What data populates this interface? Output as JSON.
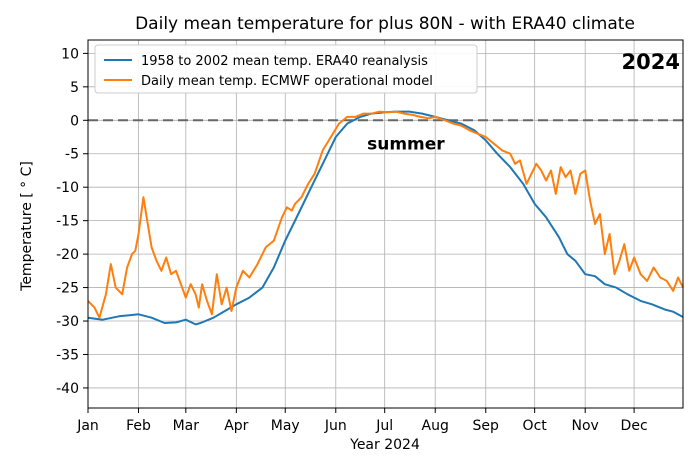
{
  "chart_data": {
    "type": "line",
    "title": "Daily mean temperature for plus 80N - with ERA40 climate",
    "xlabel": "Year 2024",
    "ylabel": "Temperature [ ° C]",
    "ylim": [
      -43,
      12
    ],
    "xlim": [
      1,
      366
    ],
    "yticks": [
      10,
      5,
      0,
      -5,
      -10,
      -15,
      -20,
      -25,
      -30,
      -35,
      -40
    ],
    "xticks": [
      {
        "label": "Jan",
        "day": 1
      },
      {
        "label": "Feb",
        "day": 32
      },
      {
        "label": "Mar",
        "day": 61
      },
      {
        "label": "Apr",
        "day": 92
      },
      {
        "label": "May",
        "day": 122
      },
      {
        "label": "Jun",
        "day": 153
      },
      {
        "label": "Jul",
        "day": 183
      },
      {
        "label": "Aug",
        "day": 214
      },
      {
        "label": "Sep",
        "day": 245
      },
      {
        "label": "Oct",
        "day": 275
      },
      {
        "label": "Nov",
        "day": 306
      },
      {
        "label": "Dec",
        "day": 336
      }
    ],
    "grid": true,
    "legend_position": "top-left",
    "reference_line": {
      "y": 0,
      "style": "dashed",
      "color": "#666666"
    },
    "annotations": [
      {
        "text": "summer",
        "day": 196,
        "y": -3.5
      },
      {
        "text": "2024",
        "position": "top-right"
      }
    ],
    "series": [
      {
        "name": "1958 to 2002 mean temp. ERA40 reanalysis",
        "color": "#1f77b4",
        "x": [
          1,
          10,
          20,
          32,
          40,
          48,
          55,
          61,
          67,
          70,
          78,
          85,
          92,
          100,
          108,
          115,
          122,
          130,
          138,
          146,
          153,
          160,
          168,
          175,
          183,
          190,
          198,
          206,
          214,
          222,
          230,
          238,
          245,
          252,
          260,
          268,
          275,
          282,
          290,
          295,
          300,
          306,
          312,
          318,
          325,
          332,
          340,
          347,
          355,
          360,
          366
        ],
        "values": [
          -29.5,
          -29.8,
          -29.3,
          -29.0,
          -29.5,
          -30.3,
          -30.2,
          -29.8,
          -30.5,
          -30.3,
          -29.5,
          -28.5,
          -27.5,
          -26.5,
          -25.0,
          -22.0,
          -18.0,
          -14.0,
          -10.0,
          -6.0,
          -2.5,
          -0.5,
          0.5,
          1.0,
          1.2,
          1.3,
          1.3,
          1.0,
          0.5,
          0.0,
          -0.5,
          -1.5,
          -3.0,
          -5.0,
          -7.0,
          -9.5,
          -12.5,
          -14.5,
          -17.5,
          -20.0,
          -21.0,
          -23.0,
          -23.3,
          -24.5,
          -25.0,
          -26.0,
          -27.0,
          -27.5,
          -28.3,
          -28.6,
          -29.4
        ]
      },
      {
        "name": "Daily mean temp. ECMWF operational model",
        "color": "#ff7f0e",
        "x": [
          1,
          5,
          8,
          12,
          15,
          18,
          22,
          25,
          28,
          30,
          32,
          35,
          38,
          40,
          43,
          46,
          49,
          52,
          55,
          58,
          61,
          64,
          67,
          69,
          71,
          74,
          77,
          80,
          83,
          86,
          89,
          92,
          96,
          100,
          105,
          110,
          115,
          120,
          123,
          126,
          128,
          132,
          136,
          140,
          145,
          150,
          155,
          160,
          165,
          170,
          175,
          180,
          185,
          190,
          195,
          200,
          205,
          210,
          214,
          220,
          225,
          230,
          235,
          240,
          245,
          250,
          255,
          260,
          263,
          266,
          270,
          273,
          276,
          279,
          282,
          285,
          288,
          291,
          294,
          297,
          300,
          303,
          306,
          309,
          312,
          315,
          318,
          321,
          324,
          327,
          330,
          333,
          336,
          340,
          344,
          348,
          352,
          356,
          360,
          363,
          366
        ],
        "values": [
          -27.0,
          -28.0,
          -29.5,
          -26.0,
          -21.5,
          -25.0,
          -26.0,
          -22.0,
          -20.0,
          -19.5,
          -17.0,
          -11.5,
          -16.0,
          -19.0,
          -21.0,
          -22.5,
          -20.5,
          -23.0,
          -22.5,
          -24.5,
          -26.5,
          -24.5,
          -26.0,
          -28.0,
          -24.5,
          -27.0,
          -29.0,
          -23.0,
          -27.5,
          -25.0,
          -28.5,
          -25.0,
          -22.5,
          -23.5,
          -21.5,
          -19.0,
          -18.0,
          -14.5,
          -13.0,
          -13.5,
          -12.5,
          -11.5,
          -9.5,
          -8.0,
          -4.5,
          -2.5,
          -0.5,
          0.5,
          0.5,
          1.0,
          1.0,
          1.3,
          1.2,
          1.3,
          1.0,
          0.8,
          0.5,
          0.3,
          0.5,
          0.0,
          -0.5,
          -0.8,
          -1.5,
          -2.0,
          -2.5,
          -3.5,
          -4.5,
          -5.0,
          -6.5,
          -6.0,
          -9.5,
          -8.0,
          -6.5,
          -7.5,
          -9.0,
          -7.5,
          -11.0,
          -7.0,
          -8.5,
          -7.5,
          -11.0,
          -8.0,
          -7.5,
          -12.0,
          -15.5,
          -14.0,
          -20.0,
          -17.0,
          -23.0,
          -21.0,
          -18.5,
          -22.5,
          -20.5,
          -23.0,
          -24.0,
          -22.0,
          -23.5,
          -24.0,
          -25.5,
          -23.5,
          -25.0
        ]
      }
    ]
  }
}
